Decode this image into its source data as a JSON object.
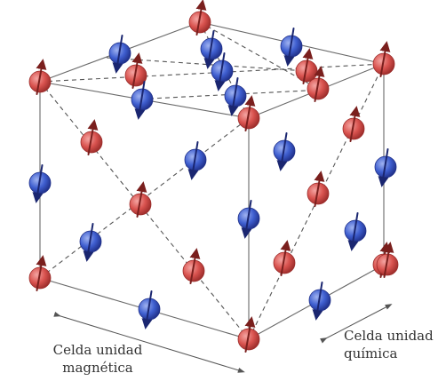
{
  "labels": {
    "magnetic_line1": "Celda unidad",
    "magnetic_line2": "magnética",
    "chemical_line1": "Celda unidad",
    "chemical_line2": "química"
  },
  "colors": {
    "red_atom": "#d9534f",
    "red_atom_dark": "#9b2c2a",
    "blue_atom": "#3f5fd0",
    "blue_atom_dark": "#1f2f88",
    "edge": "#6a6a6a"
  },
  "atoms": [
    {
      "name": "atom-red",
      "kind": "red",
      "spin": "up"
    },
    {
      "name": "atom-red",
      "kind": "red",
      "spin": "up"
    },
    {
      "name": "atom-red",
      "kind": "red",
      "spin": "up"
    },
    {
      "name": "atom-red",
      "kind": "red",
      "spin": "up"
    },
    {
      "name": "atom-red",
      "kind": "red",
      "spin": "up"
    },
    {
      "name": "atom-red",
      "kind": "red",
      "spin": "up"
    },
    {
      "name": "atom-red",
      "kind": "red",
      "spin": "up"
    },
    {
      "name": "atom-red",
      "kind": "red",
      "spin": "up"
    },
    {
      "name": "atom-red",
      "kind": "red",
      "spin": "up"
    },
    {
      "name": "atom-red",
      "kind": "red",
      "spin": "up"
    },
    {
      "name": "atom-red",
      "kind": "red",
      "spin": "up"
    },
    {
      "name": "atom-red",
      "kind": "red",
      "spin": "up"
    },
    {
      "name": "atom-red",
      "kind": "red",
      "spin": "up"
    },
    {
      "name": "atom-red",
      "kind": "red",
      "spin": "up"
    },
    {
      "name": "atom-red",
      "kind": "red",
      "spin": "up"
    },
    {
      "name": "atom-red",
      "kind": "red",
      "spin": "up"
    },
    {
      "name": "atom-red",
      "kind": "red",
      "spin": "up"
    },
    {
      "name": "atom-blue",
      "kind": "blue",
      "spin": "down"
    },
    {
      "name": "atom-blue",
      "kind": "blue",
      "spin": "down"
    },
    {
      "name": "atom-blue",
      "kind": "blue",
      "spin": "down"
    },
    {
      "name": "atom-blue",
      "kind": "blue",
      "spin": "down"
    },
    {
      "name": "atom-blue",
      "kind": "blue",
      "spin": "down"
    },
    {
      "name": "atom-blue",
      "kind": "blue",
      "spin": "down"
    },
    {
      "name": "atom-blue",
      "kind": "blue",
      "spin": "down"
    },
    {
      "name": "atom-blue",
      "kind": "blue",
      "spin": "down"
    },
    {
      "name": "atom-blue",
      "kind": "blue",
      "spin": "down"
    },
    {
      "name": "atom-blue",
      "kind": "blue",
      "spin": "down"
    },
    {
      "name": "atom-blue",
      "kind": "blue",
      "spin": "down"
    },
    {
      "name": "atom-blue",
      "kind": "blue",
      "spin": "down"
    },
    {
      "name": "atom-blue",
      "kind": "blue",
      "spin": "down"
    },
    {
      "name": "atom-blue",
      "kind": "blue",
      "spin": "down"
    },
    {
      "name": "atom-blue",
      "kind": "blue",
      "spin": "down"
    }
  ]
}
